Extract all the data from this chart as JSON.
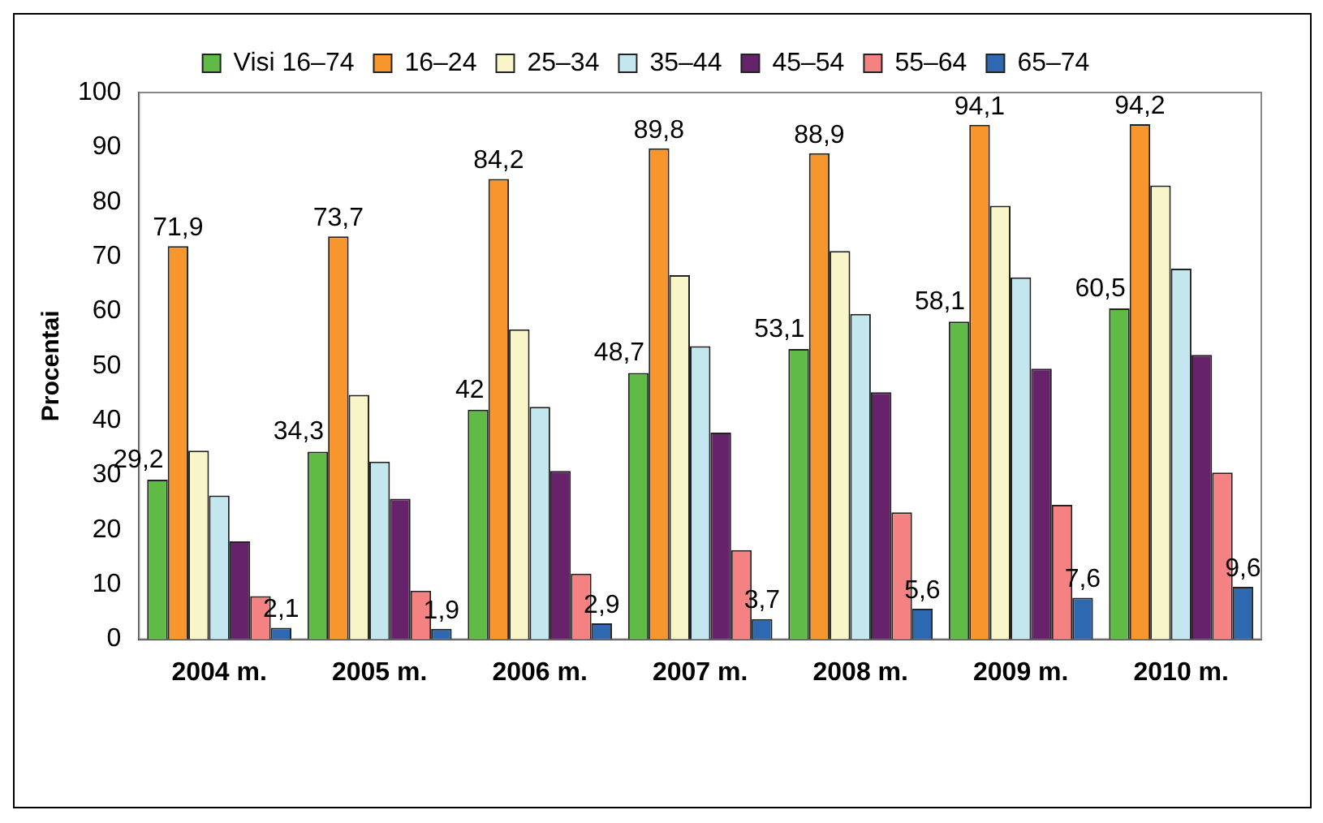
{
  "chart_data": {
    "type": "bar",
    "ylabel": "Procentai",
    "categories": [
      "2004 m.",
      "2005 m.",
      "2006 m.",
      "2007 m.",
      "2008 m.",
      "2009 m.",
      "2010 m."
    ],
    "series": [
      {
        "name": "Visi 16–74",
        "color": "#5fba46",
        "values": [
          29.2,
          34.3,
          42,
          48.7,
          53.1,
          58.1,
          60.5
        ],
        "value_labels": [
          "29,2",
          "34,3",
          "42",
          "48,7",
          "53,1",
          "58,1",
          "60,5"
        ]
      },
      {
        "name": "16–24",
        "color": "#f7962d",
        "values": [
          71.9,
          73.7,
          84.2,
          89.8,
          88.9,
          94.1,
          94.2
        ],
        "value_labels": [
          "71,9",
          "73,7",
          "84,2",
          "89,8",
          "88,9",
          "94,1",
          "94,2"
        ]
      },
      {
        "name": "25–34",
        "color": "#f8f6c8",
        "values": [
          34.5,
          44.7,
          56.7,
          66.6,
          71,
          79.3,
          83
        ]
      },
      {
        "name": "35–44",
        "color": "#c3e6ef",
        "values": [
          26.3,
          32.5,
          42.5,
          53.6,
          59.5,
          66.2,
          67.8
        ]
      },
      {
        "name": "45–54",
        "color": "#66226b",
        "values": [
          17.9,
          25.7,
          30.8,
          37.8,
          45.2,
          49.5,
          52
        ]
      },
      {
        "name": "55–64",
        "color": "#f48282",
        "values": [
          7.9,
          8.9,
          12,
          16.3,
          23.2,
          24.6,
          30.5
        ]
      },
      {
        "name": "65–74",
        "color": "#2e68b0",
        "values": [
          2.1,
          1.9,
          2.9,
          3.7,
          5.6,
          7.6,
          9.6
        ],
        "value_labels": [
          "2,1",
          "1,9",
          "2,9",
          "3,7",
          "5,6",
          "7,6",
          "9,6"
        ]
      }
    ],
    "ylim": [
      0,
      100
    ],
    "yticks": [
      0,
      10,
      20,
      30,
      40,
      50,
      60,
      70,
      80,
      90,
      100
    ],
    "grid": false,
    "legend": "top"
  }
}
